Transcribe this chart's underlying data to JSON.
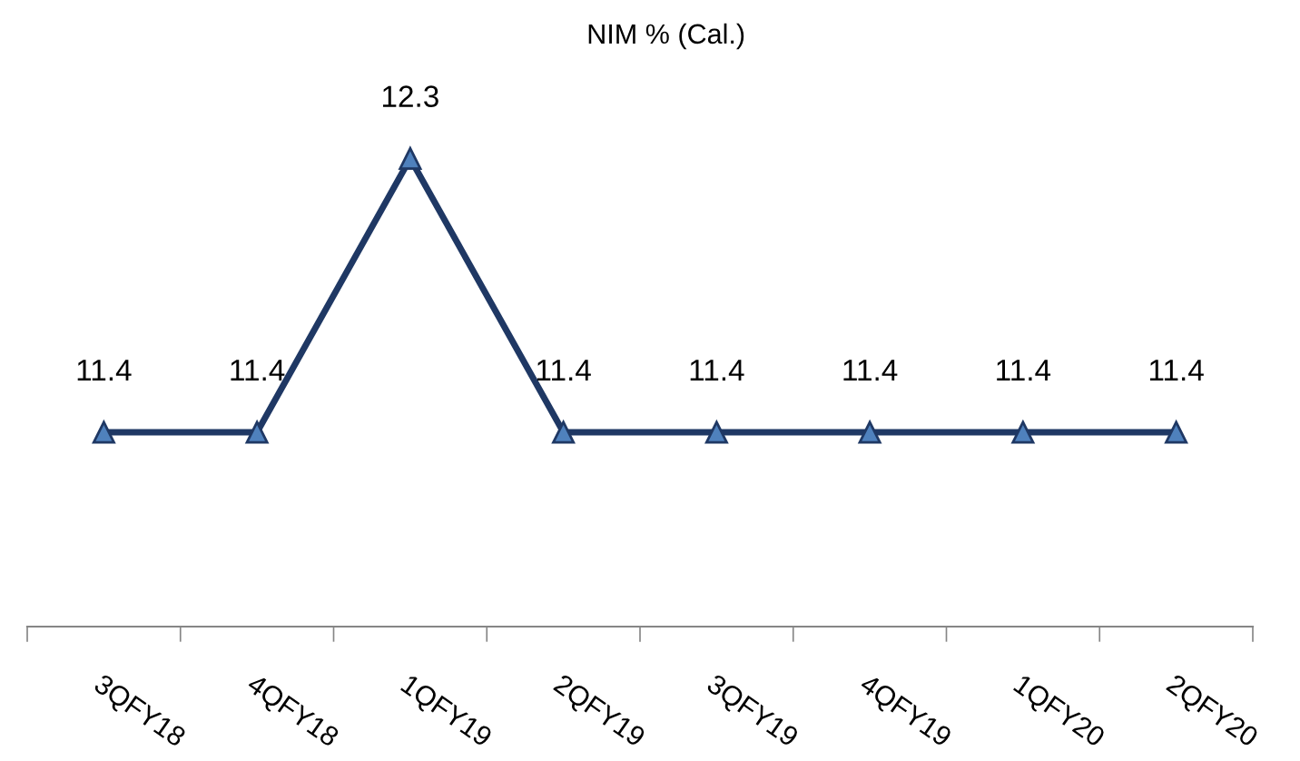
{
  "chart_data": {
    "type": "line",
    "title": "NIM % (Cal.)",
    "categories": [
      "3QFY18",
      "4QFY18",
      "1QFY19",
      "2QFY19",
      "3QFY19",
      "4QFY19",
      "1QFY20",
      "2QFY20"
    ],
    "series": [
      {
        "color": "#1f3864",
        "values": [
          11.4,
          11.4,
          12.3,
          11.4,
          11.4,
          11.4,
          11.4,
          11.4
        ]
      }
    ],
    "tick_labels": "x",
    "data_labels": true,
    "marker": "triangle",
    "line_style": "solid",
    "grid": false,
    "legend": false
  }
}
